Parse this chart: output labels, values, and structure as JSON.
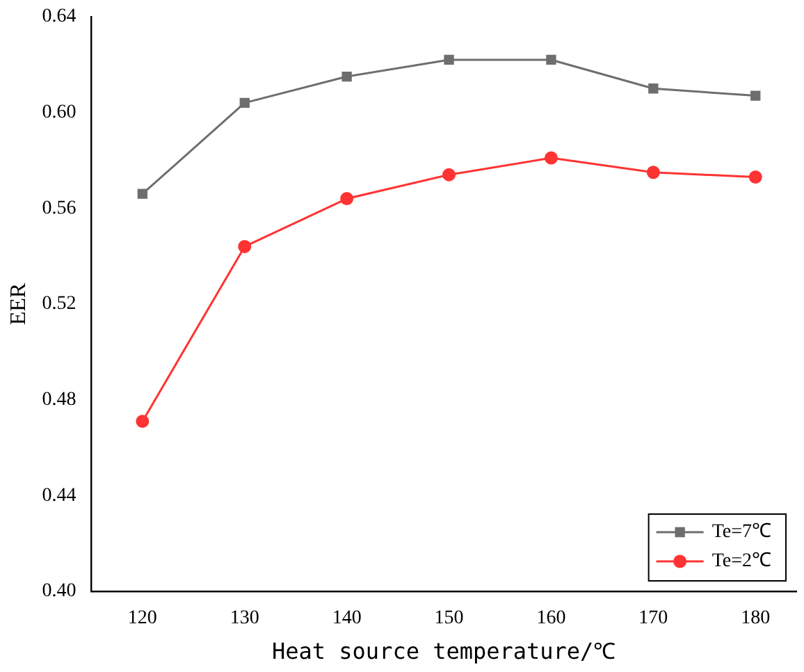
{
  "chart_data": {
    "type": "line",
    "xlabel": "Heat source temperature/℃",
    "ylabel": "EER",
    "x": [
      120,
      130,
      140,
      150,
      160,
      170,
      180
    ],
    "series": [
      {
        "name": "Te=7℃",
        "color": "#6e6e6e",
        "marker": "square",
        "values": [
          0.566,
          0.604,
          0.615,
          0.622,
          0.622,
          0.61,
          0.607
        ]
      },
      {
        "name": "Te=2℃",
        "color": "#ff3333",
        "marker": "circle",
        "values": [
          0.471,
          0.544,
          0.564,
          0.574,
          0.581,
          0.575,
          0.573
        ]
      }
    ],
    "xlim": [
      115,
      184
    ],
    "xticks": [
      120,
      130,
      140,
      150,
      160,
      170,
      180
    ],
    "ylim": [
      0.4,
      0.64
    ],
    "yticks": [
      {
        "value": 0.4,
        "label": "0.40"
      },
      {
        "value": 0.44,
        "label": "0.44"
      },
      {
        "value": 0.48,
        "label": "0.48"
      },
      {
        "value": 0.52,
        "label": "0.52"
      },
      {
        "value": 0.56,
        "label": "0.56"
      },
      {
        "value": 0.6,
        "label": "0.60"
      },
      {
        "value": 0.64,
        "label": "0.64"
      }
    ],
    "grid": false,
    "legend": "bottom right",
    "line_style": "solid"
  }
}
